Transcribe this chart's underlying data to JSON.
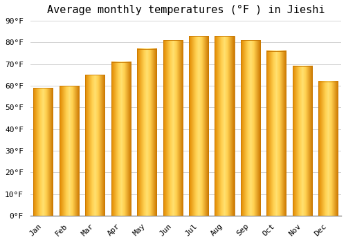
{
  "title": "Average monthly temperatures (°F ) in Jieshi",
  "months": [
    "Jan",
    "Feb",
    "Mar",
    "Apr",
    "May",
    "Jun",
    "Jul",
    "Aug",
    "Sep",
    "Oct",
    "Nov",
    "Dec"
  ],
  "values": [
    59,
    60,
    65,
    71,
    77,
    81,
    83,
    83,
    81,
    76,
    69,
    62
  ],
  "bar_color_left": "#F5A800",
  "bar_color_center": "#FFD966",
  "bar_color_right": "#E08800",
  "background_color": "#FFFFFF",
  "grid_color": "#CCCCCC",
  "ylim": [
    0,
    90
  ],
  "yticks": [
    0,
    10,
    20,
    30,
    40,
    50,
    60,
    70,
    80,
    90
  ],
  "title_fontsize": 11,
  "tick_fontsize": 8,
  "font_family": "monospace",
  "bar_width": 0.75
}
